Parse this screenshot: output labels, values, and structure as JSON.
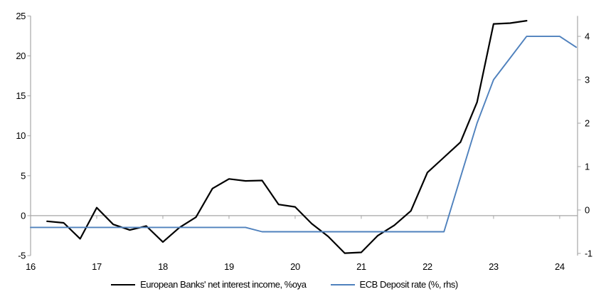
{
  "page": {
    "background": "#ffffff"
  },
  "chart_data": {
    "type": "line",
    "title": "",
    "xlabel": "",
    "ylabel_left": "",
    "ylabel_right": "",
    "grid": false,
    "legend_position": "bottom-center",
    "x_axis": {
      "min": 16,
      "max": 24.27,
      "tick_values": [
        16,
        17,
        18,
        19,
        20,
        21,
        22,
        23,
        24
      ],
      "tick_labels": [
        "16",
        "17",
        "18",
        "19",
        "20",
        "21",
        "22",
        "23",
        "24"
      ]
    },
    "left_axis": {
      "min": -5,
      "max": 25,
      "tick_values": [
        25,
        20,
        15,
        10,
        5,
        0,
        -5
      ]
    },
    "right_axis": {
      "min": -1.05,
      "max": 4.47,
      "tick_values": [
        4,
        3,
        2,
        1,
        0,
        -1
      ]
    },
    "zero_line_value": 0,
    "series": [
      {
        "name": "European Banks' net interest income, %oya",
        "axis": "left",
        "color": "#000000",
        "stroke_width": 2.2,
        "x": [
          16.25,
          16.5,
          16.75,
          17,
          17.25,
          17.5,
          17.75,
          18,
          18.25,
          18.5,
          18.75,
          19,
          19.25,
          19.5,
          19.75,
          20,
          20.25,
          20.5,
          20.75,
          21,
          21.25,
          21.5,
          21.75,
          22,
          22.25,
          22.5,
          22.75,
          23,
          23.25,
          23.5
        ],
        "values": [
          -0.7,
          -0.9,
          -2.9,
          1.0,
          -1.1,
          -1.8,
          -1.3,
          -3.3,
          -1.5,
          -0.2,
          3.4,
          4.6,
          4.35,
          4.4,
          1.4,
          1.1,
          -1.0,
          -2.6,
          -4.7,
          -4.6,
          -2.5,
          -1.2,
          0.6,
          5.4,
          7.3,
          9.2,
          14.2,
          24.0,
          24.1,
          24.4
        ]
      },
      {
        "name": "ECB Deposit rate (%, rhs)",
        "axis": "right",
        "color": "#4f81bd",
        "stroke_width": 1.9,
        "x": [
          16,
          16.25,
          16.5,
          16.75,
          17,
          17.25,
          17.5,
          17.75,
          18,
          18.25,
          18.5,
          18.75,
          19,
          19.25,
          19.5,
          19.75,
          20,
          20.25,
          20.5,
          20.75,
          21,
          21.25,
          21.5,
          21.75,
          22,
          22.25,
          22.5,
          22.75,
          23,
          23.25,
          23.5,
          23.75,
          24,
          24.25
        ],
        "values": [
          -0.4,
          -0.4,
          -0.4,
          -0.4,
          -0.4,
          -0.4,
          -0.4,
          -0.4,
          -0.4,
          -0.4,
          -0.4,
          -0.4,
          -0.4,
          -0.4,
          -0.5,
          -0.5,
          -0.5,
          -0.5,
          -0.5,
          -0.5,
          -0.5,
          -0.5,
          -0.5,
          -0.5,
          -0.5,
          -0.5,
          0.75,
          2.0,
          3.0,
          3.5,
          4.0,
          4.0,
          4.0,
          3.75
        ]
      }
    ],
    "colors": {
      "axis_line": "#a6a6a6",
      "zero_line": "#a6a6a6",
      "tick_text": "#000000"
    }
  }
}
